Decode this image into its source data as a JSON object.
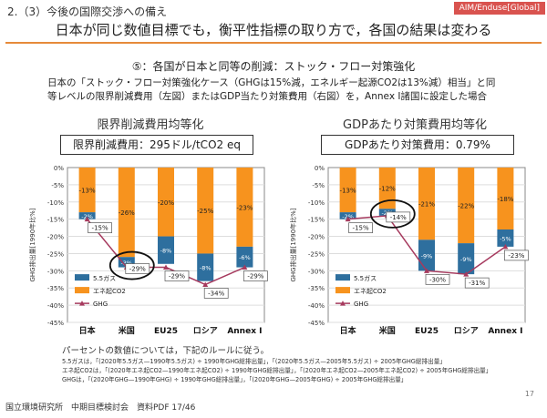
{
  "header": {
    "section_title": "2.（3）今後の国際交渉への備え",
    "tag": "AIM/Enduse[Global]",
    "main_title": "日本が同じ数値目標でも，衡平性指標の取り方で，各国の結果は変わる"
  },
  "subtitle": "⑤：各国が日本と同等の削減：ストック・フロー対策強化",
  "description": [
    "日本の「ストック・フロー対策強化ケース（GHGは15%減，エネルギー起源CO2は13%減）相当」と同",
    "等レベルの限界削減費用（左図）またはGDP当たり対策費用（右図）を，Annex I諸国に設定した場合"
  ],
  "colors": {
    "orange": "#f7931e",
    "blue": "#2e6f9e",
    "ghg_line": "#a63a5e",
    "accent_rule": "#e68a3a"
  },
  "chart_data": [
    {
      "type": "bar",
      "title": "限界削減費用均等化",
      "value_box": "限界削減費用：295ドル/tCO2 eq",
      "ylabel": "GHG排出量[1990年比%]",
      "ylim": [
        -45,
        0
      ],
      "yticks": [
        "0%",
        "-5%",
        "-10%",
        "-15%",
        "-20%",
        "-25%",
        "-30%",
        "-35%",
        "-40%",
        "-45%"
      ],
      "categories": [
        "日本",
        "米国",
        "EU25",
        "ロシア",
        "Annex I"
      ],
      "series": [
        {
          "name": "5.5ガス",
          "values": [
            -2,
            -3,
            -8,
            -8,
            -6
          ],
          "labels": [
            "-2%",
            "-3%",
            "-8%",
            "-8%",
            "-6%"
          ]
        },
        {
          "name": "エネ起CO2",
          "values": [
            -13,
            -26,
            -20,
            -25,
            -23
          ],
          "labels": [
            "-13%",
            "-26%",
            "-20%",
            "-25%",
            "-23%"
          ]
        },
        {
          "name": "GHG",
          "values": [
            -15,
            -29,
            -29,
            -34,
            -29
          ],
          "labels": [
            "-15%",
            "-29%",
            "-29%",
            "-34%",
            "-29%"
          ]
        }
      ],
      "legend": [
        "5.5ガス",
        "エネ起CO2",
        "GHG"
      ],
      "legend_position": "bottom-left",
      "highlight_category": "米国"
    },
    {
      "type": "bar",
      "title": "GDPあたり対策費用均等化",
      "value_box": "GDPあたり対策費用：0.79%",
      "ylabel": "GHG排出量[1990年比%]",
      "ylim": [
        -45,
        0
      ],
      "yticks": [
        "0%",
        "-5%",
        "-10%",
        "-15%",
        "-20%",
        "-25%",
        "-30%",
        "-35%",
        "-40%",
        "-45%"
      ],
      "categories": [
        "日本",
        "米国",
        "EU25",
        "ロシア",
        "Annex I"
      ],
      "series": [
        {
          "name": "5.5ガス",
          "values": [
            -2,
            -2,
            -9,
            -9,
            -5
          ],
          "labels": [
            "-2%",
            "-2%",
            "-9%",
            "-9%",
            "-5%"
          ]
        },
        {
          "name": "エネ起CO2",
          "values": [
            -13,
            -12,
            -21,
            -22,
            -18
          ],
          "labels": [
            "-13%",
            "-12%",
            "-21%",
            "-22%",
            "-18%"
          ]
        },
        {
          "name": "GHG",
          "values": [
            -15,
            -14,
            -30,
            -31,
            -23
          ],
          "labels": [
            "-15%",
            "-14%",
            "-30%",
            "-31%",
            "-23%"
          ]
        }
      ],
      "legend": [
        "5.5ガス",
        "エネ起CO2",
        "GHG"
      ],
      "legend_position": "bottom-left",
      "highlight_category": "米国"
    }
  ],
  "notes": {
    "heading": "パーセントの数値については，下記のルールに従う。",
    "lines": [
      "5.5ガスは，「(2020年5.5ガス—1990年5.5ガス) ÷ 1990年GHG総排出量」，「(2020年5.5ガス—2005年5.5ガス) ÷ 2005年GHG総排出量」",
      "エネ起CO2は，「(2020年エネ起CO2—1990年エネ起CO2) ÷ 1990年GHG総排出量」，「(2020年エネ起CO2—2005年エネ起CO2) ÷ 2005年GHG総排出量」",
      "GHGは，「(2020年GHG—1990年GHG) ÷ 1990年GHG総排出量」，「(2020年GHG—2005年GHG) ÷ 2005年GHG総排出量」"
    ]
  },
  "footer": "国立環境研究所　中期目標検討会　資料PDF 17/46",
  "page_number": "17"
}
